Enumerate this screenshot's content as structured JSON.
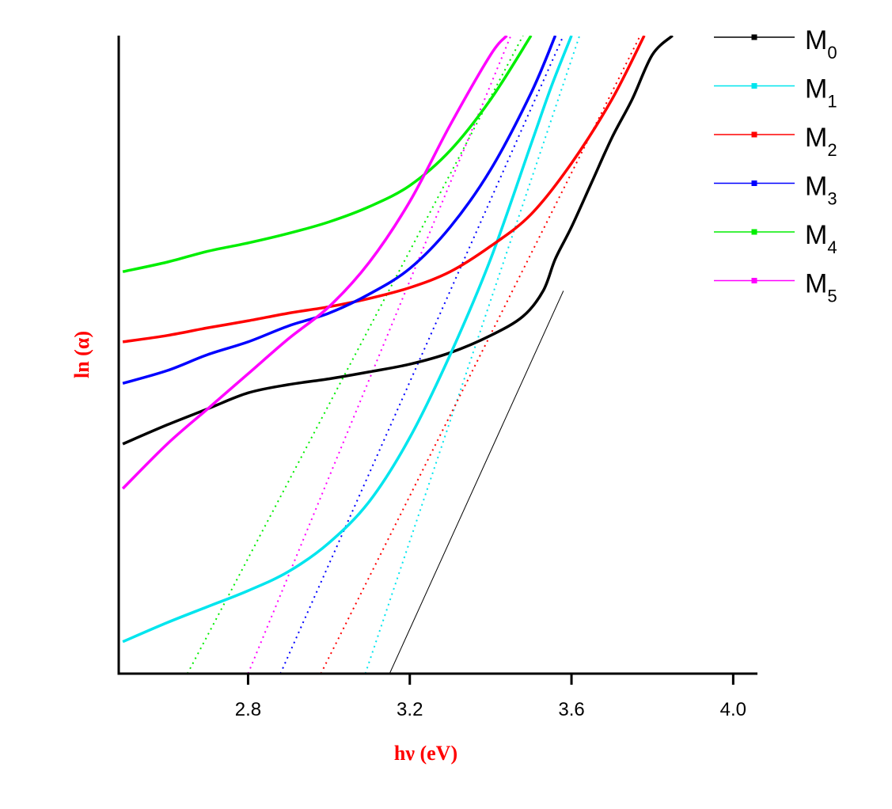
{
  "chart_data": {
    "type": "line",
    "title": "",
    "xlabel": "hν (eV)",
    "ylabel": "ln (α)",
    "axis_title_color": "#ff0000",
    "xlim": [
      2.48,
      4.06
    ],
    "ylim": [
      0,
      1
    ],
    "y_ticks_labeled": false,
    "x_ticks": [
      2.8,
      3.2,
      3.6,
      4.0
    ],
    "x_tick_labels": [
      "2.8",
      "3.2",
      "3.6",
      "4.0"
    ],
    "grid": false,
    "legend_position": "top-right",
    "series": [
      {
        "name": "M",
        "sub": "0",
        "color": "#000000",
        "x": [
          2.49,
          2.6,
          2.7,
          2.8,
          2.9,
          3.0,
          3.1,
          3.2,
          3.3,
          3.4,
          3.48,
          3.53,
          3.56,
          3.6,
          3.65,
          3.7,
          3.75,
          3.8,
          3.85
        ],
        "y": [
          0.36,
          0.39,
          0.415,
          0.44,
          0.453,
          0.462,
          0.473,
          0.485,
          0.503,
          0.53,
          0.56,
          0.6,
          0.65,
          0.7,
          0.77,
          0.84,
          0.9,
          0.97,
          1.0
        ],
        "fit": {
          "x": [
            3.15,
            3.58
          ],
          "y": [
            0.0,
            0.6
          ]
        }
      },
      {
        "name": "M",
        "sub": "1",
        "color": "#00e5ee",
        "x": [
          2.49,
          2.6,
          2.7,
          2.8,
          2.9,
          3.0,
          3.1,
          3.2,
          3.3,
          3.4,
          3.5,
          3.55,
          3.6
        ],
        "y": [
          0.05,
          0.08,
          0.105,
          0.13,
          0.16,
          0.205,
          0.27,
          0.37,
          0.5,
          0.65,
          0.83,
          0.92,
          1.0
        ],
        "fit": {
          "x": [
            3.09,
            3.62
          ],
          "y": [
            0.0,
            1.0
          ]
        }
      },
      {
        "name": "M",
        "sub": "2",
        "color": "#ff0000",
        "x": [
          2.49,
          2.6,
          2.7,
          2.8,
          2.9,
          3.0,
          3.1,
          3.2,
          3.3,
          3.4,
          3.5,
          3.6,
          3.7,
          3.78
        ],
        "y": [
          0.52,
          0.53,
          0.542,
          0.553,
          0.565,
          0.575,
          0.588,
          0.605,
          0.63,
          0.67,
          0.72,
          0.8,
          0.9,
          1.0
        ],
        "fit": {
          "x": [
            2.98,
            3.77
          ],
          "y": [
            0.0,
            1.0
          ]
        }
      },
      {
        "name": "M",
        "sub": "3",
        "color": "#0000ff",
        "x": [
          2.49,
          2.6,
          2.7,
          2.8,
          2.9,
          3.0,
          3.1,
          3.2,
          3.3,
          3.4,
          3.5,
          3.56
        ],
        "y": [
          0.455,
          0.475,
          0.5,
          0.52,
          0.545,
          0.565,
          0.595,
          0.635,
          0.7,
          0.79,
          0.91,
          1.0
        ],
        "fit": {
          "x": [
            2.88,
            3.58
          ],
          "y": [
            0.0,
            1.0
          ]
        }
      },
      {
        "name": "M",
        "sub": "4",
        "color": "#00ee00",
        "x": [
          2.49,
          2.6,
          2.7,
          2.8,
          2.9,
          3.0,
          3.1,
          3.2,
          3.3,
          3.4,
          3.5
        ],
        "y": [
          0.63,
          0.645,
          0.662,
          0.675,
          0.69,
          0.708,
          0.732,
          0.765,
          0.82,
          0.9,
          1.0
        ],
        "fit": {
          "x": [
            2.65,
            3.48
          ],
          "y": [
            0.0,
            1.0
          ]
        }
      },
      {
        "name": "M",
        "sub": "5",
        "color": "#ff00ff",
        "x": [
          2.49,
          2.6,
          2.7,
          2.8,
          2.9,
          3.0,
          3.1,
          3.2,
          3.3,
          3.4,
          3.44
        ],
        "y": [
          0.29,
          0.36,
          0.415,
          0.47,
          0.525,
          0.575,
          0.645,
          0.74,
          0.86,
          0.97,
          1.0
        ],
        "fit": {
          "x": [
            2.8,
            3.45
          ],
          "y": [
            0.0,
            1.0
          ]
        }
      }
    ]
  }
}
